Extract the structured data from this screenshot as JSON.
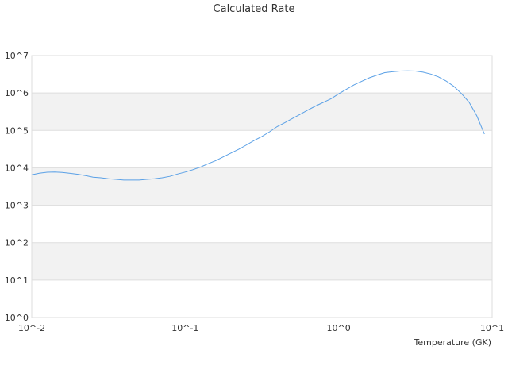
{
  "chart_data": {
    "type": "line",
    "title": "Calculated Rate",
    "xlabel": "Temperature (GK)",
    "ylabel": "",
    "x_scale": "log",
    "y_scale": "log",
    "xlim": [
      0.01,
      10
    ],
    "ylim": [
      1,
      10000000
    ],
    "x_ticks": [
      "10^-2",
      "10^-1",
      "10^0",
      "10^1"
    ],
    "y_ticks": [
      "10^0",
      "10^1",
      "10^2",
      "10^3",
      "10^4",
      "10^5",
      "10^6",
      "10^7"
    ],
    "grid": "horizontal alternating bands",
    "legend": "none",
    "series": [
      {
        "color": "#5aa0e6",
        "x": [
          0.01,
          0.0112,
          0.0126,
          0.0141,
          0.0158,
          0.0178,
          0.02,
          0.0224,
          0.0251,
          0.0282,
          0.0316,
          0.0355,
          0.0398,
          0.0447,
          0.0501,
          0.0562,
          0.0631,
          0.0708,
          0.0794,
          0.0891,
          0.1,
          0.1122,
          0.1259,
          0.1413,
          0.1585,
          0.1778,
          0.1995,
          0.2239,
          0.2512,
          0.2818,
          0.3162,
          0.3548,
          0.3981,
          0.4467,
          0.5012,
          0.5623,
          0.631,
          0.7079,
          0.7943,
          0.8913,
          1.0,
          1.122,
          1.259,
          1.413,
          1.585,
          1.778,
          1.995,
          2.239,
          2.512,
          2.818,
          3.162,
          3.548,
          3.981,
          4.467,
          5.012,
          5.623,
          6.31,
          7.079,
          7.943,
          8.913
        ],
        "y": [
          6500,
          7200,
          7600,
          7700,
          7500,
          7100,
          6700,
          6200,
          5600,
          5400,
          5100,
          4900,
          4700,
          4700,
          4700,
          4900,
          5100,
          5400,
          5900,
          6800,
          7700,
          8900,
          10500,
          12900,
          15600,
          19800,
          25000,
          31500,
          41000,
          54000,
          69000,
          92000,
          127000,
          162000,
          210000,
          270000,
          350000,
          450000,
          560000,
          700000,
          950000,
          1250000,
          1650000,
          2050000,
          2550000,
          3000000,
          3500000,
          3700000,
          3850000,
          3900000,
          3850000,
          3600000,
          3200000,
          2700000,
          2100000,
          1500000,
          970000,
          565000,
          245000,
          80000
        ]
      }
    ]
  }
}
